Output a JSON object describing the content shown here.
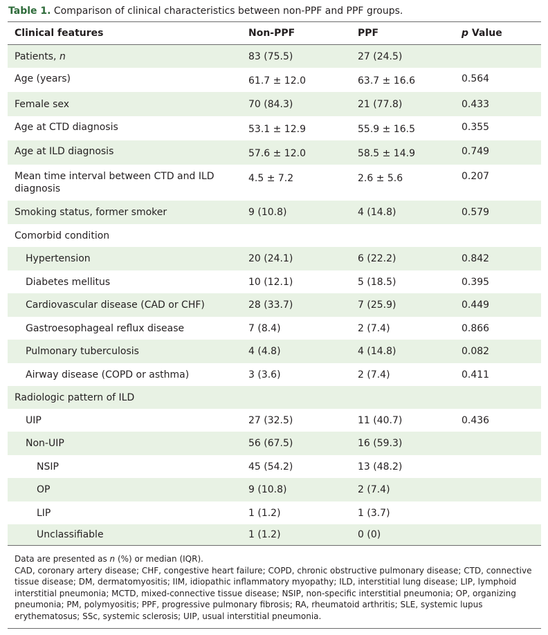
{
  "caption": {
    "label": "Table 1.",
    "text": "Comparison of clinical characteristics between non-PPF and PPF groups."
  },
  "header": {
    "features": "Clinical features",
    "nonppf": "Non-PPF",
    "ppf": "PPF",
    "p_italic": "p",
    "p_rest": " Value"
  },
  "rows": [
    {
      "label": "Patients, ",
      "label_italic": "n",
      "nonppf": "83 (75.5)",
      "ppf": "27 (24.5)",
      "p": ""
    },
    {
      "label": "Age (years)",
      "nonppf": "61.7 ± 12.0",
      "ppf": "63.7 ± 16.6",
      "p": "0.564"
    },
    {
      "label": "Female sex",
      "nonppf": "70 (84.3)",
      "ppf": "21 (77.8)",
      "p": "0.433"
    },
    {
      "label": "Age at CTD diagnosis",
      "nonppf": "53.1 ± 12.9",
      "ppf": "55.9 ± 16.5",
      "p": "0.355"
    },
    {
      "label": "Age at ILD diagnosis",
      "nonppf": "57.6 ± 12.0",
      "ppf": "58.5 ± 14.9",
      "p": "0.749"
    },
    {
      "label_line1": "Mean time interval between CTD and ILD",
      "label_line2": "diagnosis",
      "nonppf": "4.5 ± 7.2",
      "ppf": "2.6 ± 5.6",
      "p": "0.207"
    },
    {
      "label": "Smoking status, former smoker",
      "nonppf": "9 (10.8)",
      "ppf": "4 (14.8)",
      "p": "0.579"
    },
    {
      "label": "Comorbid condition",
      "nonppf": "",
      "ppf": "",
      "p": ""
    },
    {
      "label": "Hypertension",
      "nonppf": "20 (24.1)",
      "ppf": "6 (22.2)",
      "p": "0.842"
    },
    {
      "label": "Diabetes mellitus",
      "nonppf": "10 (12.1)",
      "ppf": "5 (18.5)",
      "p": "0.395"
    },
    {
      "label": "Cardiovascular disease (CAD or CHF)",
      "nonppf": "28 (33.7)",
      "ppf": "7 (25.9)",
      "p": "0.449"
    },
    {
      "label": "Gastroesophageal reflux disease",
      "nonppf": "7 (8.4)",
      "ppf": "2 (7.4)",
      "p": "0.866"
    },
    {
      "label": "Pulmonary tuberculosis",
      "nonppf": "4 (4.8)",
      "ppf": "4 (14.8)",
      "p": "0.082"
    },
    {
      "label": "Airway disease (COPD or asthma)",
      "nonppf": "3 (3.6)",
      "ppf": "2 (7.4)",
      "p": "0.411"
    },
    {
      "label": "Radiologic pattern of ILD",
      "nonppf": "",
      "ppf": "",
      "p": ""
    },
    {
      "label": "UIP",
      "nonppf": "27 (32.5)",
      "ppf": "11 (40.7)",
      "p": "0.436"
    },
    {
      "label": "Non-UIP",
      "nonppf": "56 (67.5)",
      "ppf": "16 (59.3)",
      "p": ""
    },
    {
      "label": "NSIP",
      "nonppf": "45 (54.2)",
      "ppf": "13 (48.2)",
      "p": ""
    },
    {
      "label": "OP",
      "nonppf": "9 (10.8)",
      "ppf": "2 (7.4)",
      "p": ""
    },
    {
      "label": "LIP",
      "nonppf": "1 (1.2)",
      "ppf": "1 (3.7)",
      "p": ""
    },
    {
      "label": "Unclassifiable",
      "nonppf": "1 (1.2)",
      "ppf": "0 (0)",
      "p": ""
    }
  ],
  "footnote": {
    "line1_a": "Data are presented as ",
    "line1_n": "n",
    "line1_b": " (%) or median (IQR).",
    "abbreviations": "CAD, coronary artery disease; CHF, congestive heart failure; COPD, chronic obstructive pulmonary disease; CTD, connective tissue disease; DM, dermatomyositis; IIM, idiopathic inflammatory myopathy; ILD, interstitial lung disease; LIP, lymphoid interstitial pneumonia; MCTD, mixed-connective tissue disease; NSIP, non-specific interstitial pneumonia; OP, organizing pneumonia; PM, polymyositis; PPF, progressive pulmonary fibrosis; RA, rheumatoid arthritis; SLE, systemic lupus erythematosus; SSc, systemic sclerosis; UIP, usual interstitial pneumonia."
  }
}
